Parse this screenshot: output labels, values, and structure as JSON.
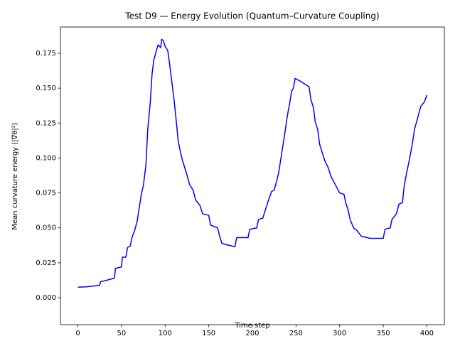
{
  "chart_data": {
    "type": "line",
    "title": "Test D9 — Energy Evolution (Quantum–Curvature Coupling)",
    "x_label": "Time step",
    "y_label": "Mean curvature energy ⟨|∇θ|²⟩",
    "color": "#0000ff",
    "x": [
      0,
      10,
      20,
      25,
      26,
      30,
      42,
      43,
      50,
      51,
      55,
      57,
      60,
      62,
      65,
      68,
      70,
      73,
      75,
      78,
      80,
      83,
      85,
      87,
      90,
      92,
      95,
      96,
      98,
      100,
      103,
      105,
      107,
      110,
      113,
      115,
      118,
      120,
      123,
      125,
      128,
      132,
      135,
      140,
      143,
      150,
      152,
      160,
      163,
      165,
      170,
      180,
      182,
      195,
      197,
      205,
      207,
      212,
      215,
      218,
      222,
      225,
      228,
      230,
      233,
      237,
      240,
      243,
      245,
      247,
      249,
      255,
      260,
      265,
      267,
      270,
      272,
      275,
      277,
      280,
      283,
      287,
      290,
      295,
      300,
      305,
      307,
      310,
      312,
      316,
      320,
      325,
      335,
      350,
      352,
      358,
      360,
      365,
      368,
      372,
      374,
      377,
      380,
      383,
      386,
      390,
      393,
      397,
      400
    ],
    "values": [
      0.0075,
      0.0078,
      0.0085,
      0.009,
      0.0115,
      0.012,
      0.014,
      0.021,
      0.022,
      0.029,
      0.029,
      0.036,
      0.037,
      0.043,
      0.048,
      0.055,
      0.063,
      0.075,
      0.08,
      0.095,
      0.12,
      0.14,
      0.16,
      0.17,
      0.177,
      0.181,
      0.179,
      0.185,
      0.184,
      0.18,
      0.177,
      0.168,
      0.158,
      0.143,
      0.125,
      0.112,
      0.103,
      0.098,
      0.092,
      0.088,
      0.081,
      0.077,
      0.07,
      0.066,
      0.06,
      0.059,
      0.052,
      0.05,
      0.043,
      0.039,
      0.038,
      0.0365,
      0.043,
      0.043,
      0.049,
      0.05,
      0.056,
      0.057,
      0.063,
      0.069,
      0.076,
      0.077,
      0.084,
      0.089,
      0.101,
      0.117,
      0.13,
      0.14,
      0.148,
      0.15,
      0.157,
      0.155,
      0.153,
      0.151,
      0.142,
      0.136,
      0.126,
      0.12,
      0.11,
      0.104,
      0.098,
      0.093,
      0.087,
      0.081,
      0.075,
      0.074,
      0.068,
      0.062,
      0.056,
      0.05,
      0.048,
      0.044,
      0.0425,
      0.0425,
      0.049,
      0.05,
      0.056,
      0.06,
      0.067,
      0.068,
      0.08,
      0.09,
      0.099,
      0.109,
      0.121,
      0.13,
      0.137,
      0.14,
      0.145
    ],
    "xlim": [
      -20,
      420
    ],
    "ylim": [
      -0.0193,
      0.1938
    ],
    "xticks": [
      0,
      50,
      100,
      150,
      200,
      250,
      300,
      350,
      400
    ],
    "yticks": [
      {
        "value": 0,
        "label": "0.000"
      },
      {
        "value": 0.025,
        "label": "0.025"
      },
      {
        "value": 0.05,
        "label": "0.050"
      },
      {
        "value": 0.075,
        "label": "0.075"
      },
      {
        "value": 0.1,
        "label": "0.100"
      },
      {
        "value": 0.125,
        "label": "0.125"
      },
      {
        "value": 0.15,
        "label": "0.150"
      },
      {
        "value": 0.175,
        "label": "0.175"
      }
    ],
    "grid": false
  }
}
